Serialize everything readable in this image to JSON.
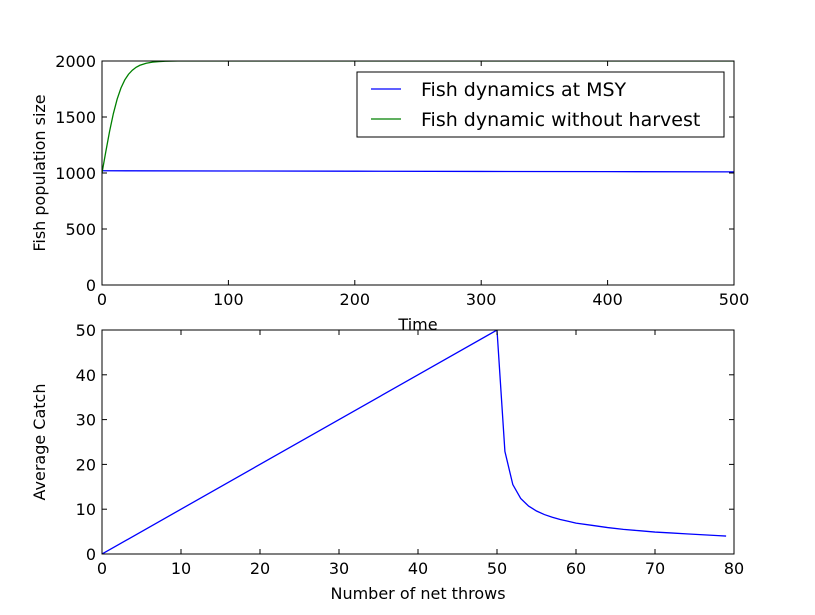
{
  "colors": {
    "blue": "#0000ff",
    "green": "#008000",
    "axis": "#000000",
    "background": "#ffffff"
  },
  "chart_data": [
    {
      "type": "line",
      "title": "",
      "xlabel": "Time",
      "ylabel": "Fish population size",
      "xlim": [
        0,
        500
      ],
      "ylim": [
        0,
        2000
      ],
      "xticks": [
        0,
        100,
        200,
        300,
        400,
        500
      ],
      "yticks": [
        0,
        500,
        1000,
        1500,
        2000
      ],
      "grid": false,
      "legend": "top-right",
      "series": [
        {
          "name": "Fish dynamics at MSY",
          "color": "#0000ff",
          "x": [
            0,
            100,
            200,
            300,
            400,
            500
          ],
          "y": [
            1020,
            1018,
            1016,
            1014,
            1012,
            1010
          ]
        },
        {
          "name": "Fish dynamic without harvest",
          "color": "#008000",
          "x": [
            0,
            3,
            6,
            9,
            12,
            15,
            18,
            21,
            24,
            27,
            30,
            35,
            40,
            45,
            50,
            55,
            60,
            80,
            100,
            200,
            300,
            400,
            500
          ],
          "y": [
            1000,
            1190,
            1372,
            1531,
            1660,
            1759,
            1831,
            1882,
            1918,
            1944,
            1962,
            1980,
            1990,
            1995,
            1998,
            1999,
            2000,
            2000,
            2000,
            2000,
            2000,
            2000,
            2000
          ]
        }
      ]
    },
    {
      "type": "line",
      "title": "",
      "xlabel": "Number of net throws",
      "ylabel": "Average Catch",
      "xlim": [
        0,
        80
      ],
      "ylim": [
        0,
        50
      ],
      "xticks": [
        0,
        10,
        20,
        30,
        40,
        50,
        60,
        70,
        80
      ],
      "yticks": [
        0,
        10,
        20,
        30,
        40,
        50
      ],
      "grid": false,
      "series": [
        {
          "color": "#0000ff",
          "x": [
            0,
            50,
            51,
            52,
            53,
            54,
            55,
            56,
            57,
            58,
            59,
            60,
            62,
            64,
            66,
            68,
            70,
            72,
            74,
            76,
            78,
            79
          ],
          "y": [
            0,
            50,
            22.9,
            15.5,
            12.4,
            10.7,
            9.6,
            8.8,
            8.2,
            7.7,
            7.3,
            6.9,
            6.4,
            5.9,
            5.5,
            5.2,
            4.9,
            4.7,
            4.5,
            4.3,
            4.1,
            4.0
          ]
        }
      ]
    }
  ]
}
